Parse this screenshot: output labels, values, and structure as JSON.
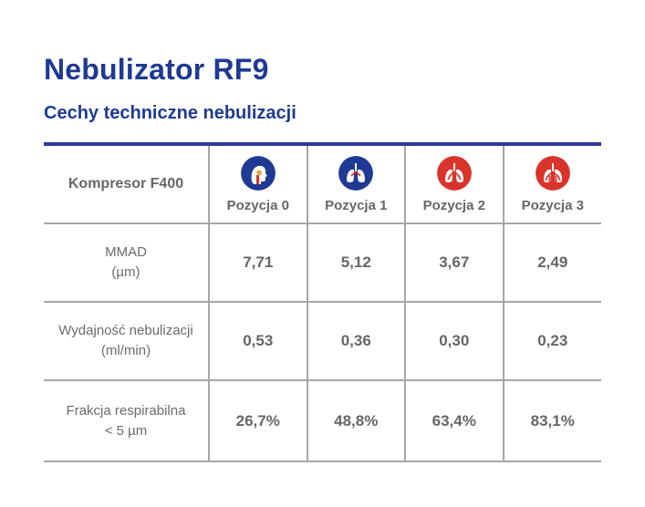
{
  "title": "Nebulizator RF9",
  "subtitle": "Cechy techniczne nebulizacji",
  "table": {
    "corner_label": "Kompresor F400",
    "columns": [
      {
        "label": "Pozycja 0",
        "icon": "head-airway-icon",
        "icon_color": "#1f3a93"
      },
      {
        "label": "Pozycja 1",
        "icon": "lungs-icon",
        "icon_color": "#1f3a93"
      },
      {
        "label": "Pozycja 2",
        "icon": "lungs-icon",
        "icon_color": "#d9342b"
      },
      {
        "label": "Pozycja 3",
        "icon": "lungs-icon",
        "icon_color": "#d9342b"
      }
    ],
    "rows": [
      {
        "label_line1": "MMAD",
        "label_line2": "(µm)",
        "values": [
          "7,71",
          "5,12",
          "3,67",
          "2,49"
        ]
      },
      {
        "label_line1": "Wydajność nebulizacji",
        "label_line2": "(ml/min)",
        "values": [
          "0,53",
          "0,36",
          "0,30",
          "0,23"
        ]
      },
      {
        "label_line1": "Frakcja respirabilna",
        "label_line2": "< 5 µm",
        "values": [
          "26,7%",
          "48,8%",
          "63,4%",
          "83,1%"
        ]
      }
    ]
  },
  "colors": {
    "brand_blue": "#1f3a93",
    "accent_red": "#d9342b",
    "text_gray": "#666666",
    "grid_gray": "#a7a7a7"
  }
}
